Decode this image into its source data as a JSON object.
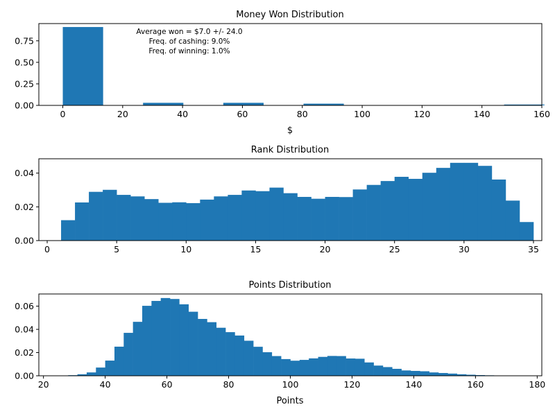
{
  "chart_data": [
    {
      "type": "bar",
      "title": "Money Won Distribution",
      "xlabel": "$",
      "ylabel": "",
      "xlim": [
        -8,
        160
      ],
      "ylim": [
        0,
        0.95
      ],
      "xticks": [
        0,
        20,
        40,
        60,
        80,
        100,
        120,
        140,
        160
      ],
      "yticks": [
        0.0,
        0.25,
        0.5,
        0.75
      ],
      "ytick_labels": [
        "0.00",
        "0.25",
        "0.50",
        "0.75"
      ],
      "bins": [
        {
          "x0": 0,
          "x1": 13.4,
          "value": 0.91
        },
        {
          "x0": 26.8,
          "x1": 40.2,
          "value": 0.03
        },
        {
          "x0": 53.6,
          "x1": 67.0,
          "value": 0.03
        },
        {
          "x0": 80.4,
          "x1": 93.8,
          "value": 0.02
        },
        {
          "x0": 147.4,
          "x1": 160.8,
          "value": 0.01
        }
      ],
      "annotations": [
        "Average won = $7.0 +/- 24.0",
        "Freq. of cashing: 9.0%",
        "Freq. of winning: 1.0%"
      ],
      "grid": false,
      "color": "#1f77b4"
    },
    {
      "type": "bar",
      "title": "Rank Distribution",
      "xlabel": "",
      "ylabel": "",
      "xlim": [
        -0.6,
        35.6
      ],
      "ylim": [
        0,
        0.0485
      ],
      "xticks": [
        0,
        5,
        10,
        15,
        20,
        25,
        30,
        35
      ],
      "yticks": [
        0.0,
        0.02,
        0.04
      ],
      "ytick_labels": [
        "0.00",
        "0.02",
        "0.04"
      ],
      "bin_start": 1,
      "bin_width": 1,
      "values": [
        0.0121,
        0.0226,
        0.0289,
        0.0301,
        0.0271,
        0.0262,
        0.0246,
        0.0224,
        0.0227,
        0.0222,
        0.0243,
        0.0262,
        0.0271,
        0.0297,
        0.0293,
        0.0314,
        0.0281,
        0.0259,
        0.0248,
        0.0259,
        0.0258,
        0.0303,
        0.033,
        0.0353,
        0.0378,
        0.0366,
        0.0402,
        0.0431,
        0.0461,
        0.0461,
        0.0443,
        0.0362,
        0.0237,
        0.011
      ],
      "grid": false,
      "color": "#1f77b4"
    },
    {
      "type": "bar",
      "title": "Points Distribution",
      "xlabel": "Points",
      "ylabel": "",
      "xlim": [
        18.5,
        181.5
      ],
      "ylim": [
        0,
        0.0705
      ],
      "xticks": [
        20,
        40,
        60,
        80,
        100,
        120,
        140,
        160,
        180
      ],
      "yticks": [
        0.0,
        0.02,
        0.04,
        0.06
      ],
      "ytick_labels": [
        "0.00",
        "0.02",
        "0.04",
        "0.06"
      ],
      "bin_start": 25,
      "bin_width": 3,
      "values": [
        0.0002,
        0.0005,
        0.0013,
        0.0029,
        0.0071,
        0.0131,
        0.0251,
        0.037,
        0.0465,
        0.0603,
        0.0645,
        0.067,
        0.0662,
        0.0616,
        0.0552,
        0.049,
        0.0462,
        0.0414,
        0.0376,
        0.0347,
        0.0302,
        0.025,
        0.0203,
        0.017,
        0.0144,
        0.013,
        0.0137,
        0.015,
        0.0163,
        0.0171,
        0.017,
        0.0149,
        0.0147,
        0.0115,
        0.0088,
        0.0075,
        0.006,
        0.0046,
        0.0042,
        0.0039,
        0.0029,
        0.0024,
        0.0019,
        0.0013,
        0.0009,
        0.0006,
        0.0004,
        0.0002
      ],
      "grid": false,
      "color": "#1f77b4"
    }
  ]
}
